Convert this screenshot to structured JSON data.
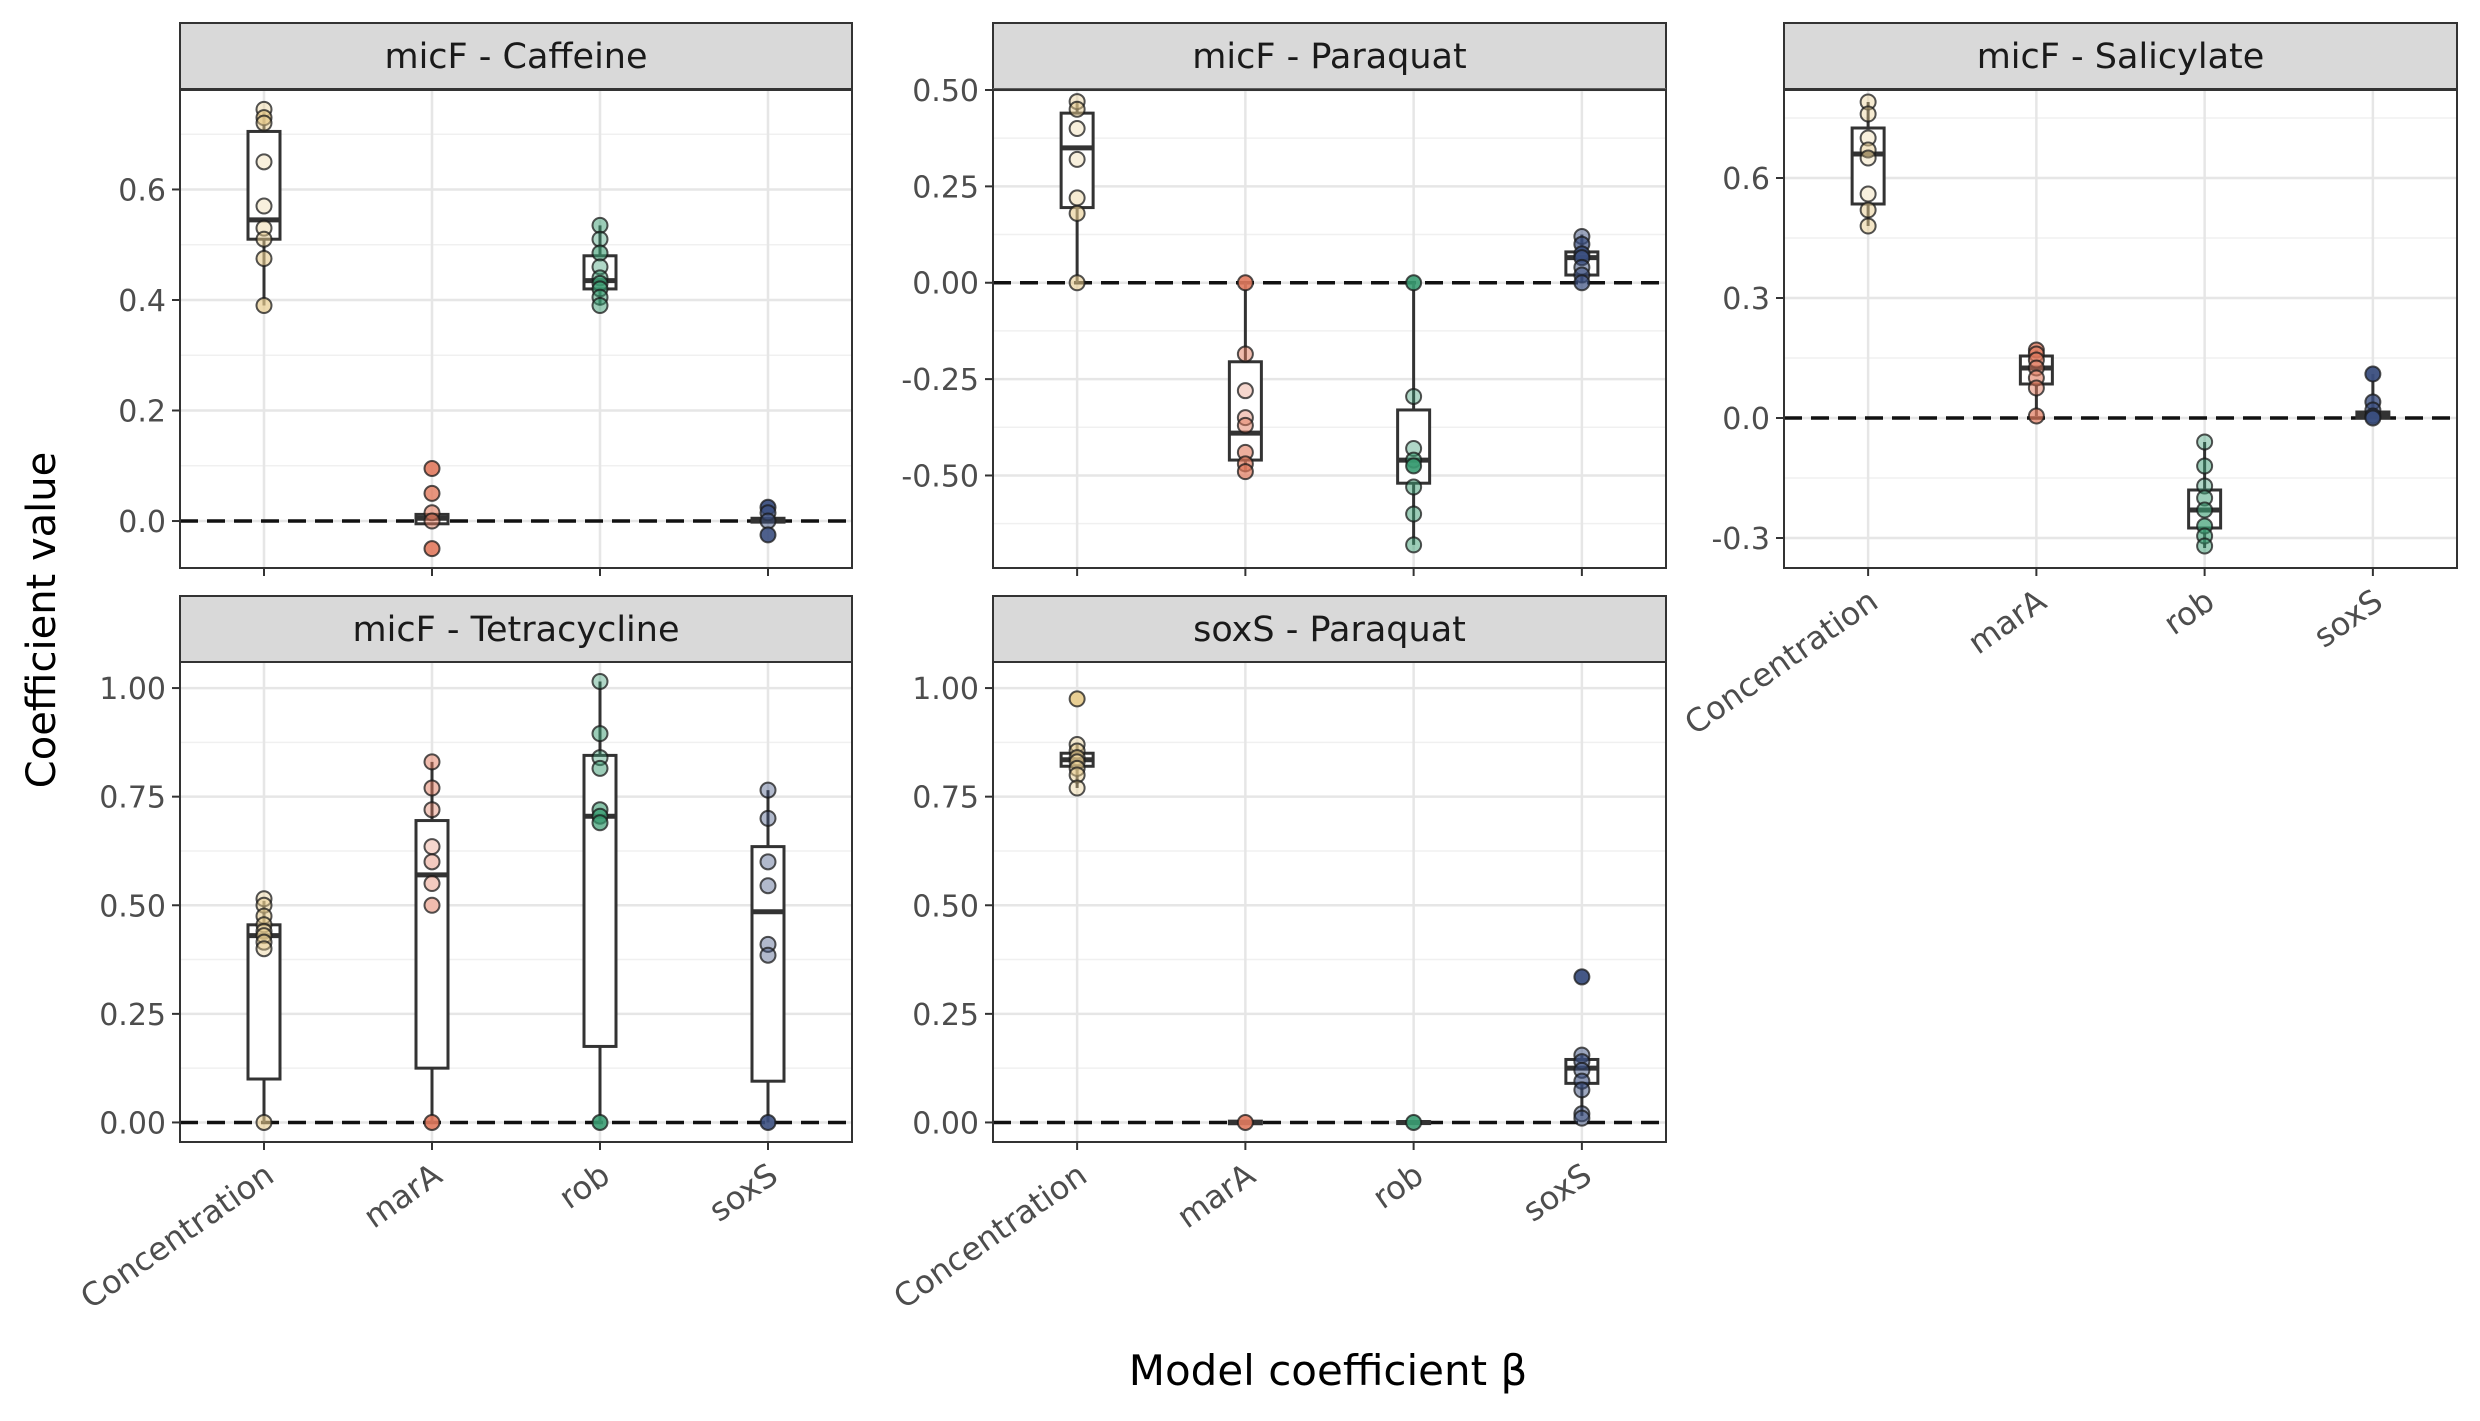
{
  "figure": {
    "ylabel": "Coefficient value",
    "xlabel": "Model coefficient β"
  },
  "chart_data": [
    {
      "type": "box",
      "title": "micF - Caffeine",
      "categories": [
        "Concentration",
        "marA",
        "rob",
        "soxS"
      ],
      "ylim": [
        -0.085,
        0.78
      ],
      "yticks": [
        0.0,
        0.2,
        0.4,
        0.6
      ],
      "ytick_labels": [
        "0.0",
        "0.2",
        "0.4",
        "0.6"
      ],
      "reference_line": 0,
      "colors": {
        "Concentration": "#e8cc8e",
        "marA": "#e17a5e",
        "rob": "#3a9c72",
        "soxS": "#3b4f80"
      },
      "boxes": [
        {
          "category": "Concentration",
          "q1": 0.51,
          "median": 0.545,
          "q3": 0.705,
          "whisker_low": 0.39,
          "whisker_high": 0.74
        },
        {
          "category": "marA",
          "q1": -0.005,
          "median": 0.005,
          "q3": 0.012,
          "whisker_low": -0.005,
          "whisker_high": 0.012
        },
        {
          "category": "rob",
          "q1": 0.42,
          "median": 0.435,
          "q3": 0.48,
          "whisker_low": 0.39,
          "whisker_high": 0.535
        },
        {
          "category": "soxS",
          "q1": -0.002,
          "median": 0.0,
          "q3": 0.005,
          "whisker_low": -0.002,
          "whisker_high": 0.005
        }
      ],
      "points": [
        {
          "category": "Concentration",
          "values": [
            0.745,
            0.73,
            0.72,
            0.65,
            0.57,
            0.53,
            0.51,
            0.475,
            0.39
          ],
          "alphas": [
            0.4,
            0.8,
            0.5,
            0.3,
            0.3,
            0.4,
            0.5,
            0.6,
            0.7
          ]
        },
        {
          "category": "marA",
          "values": [
            0.095,
            0.05,
            0.015,
            0.0,
            -0.05
          ],
          "alphas": [
            0.9,
            0.8,
            0.6,
            0.5,
            0.9
          ]
        },
        {
          "category": "rob",
          "values": [
            0.535,
            0.51,
            0.485,
            0.46,
            0.44,
            0.43,
            0.42,
            0.405,
            0.39
          ],
          "alphas": [
            0.5,
            0.4,
            0.6,
            0.4,
            0.5,
            0.7,
            0.6,
            0.5,
            0.5
          ]
        },
        {
          "category": "soxS",
          "values": [
            0.025,
            0.015,
            0.0,
            -0.025
          ],
          "alphas": [
            0.95,
            0.7,
            0.5,
            0.9
          ]
        }
      ]
    },
    {
      "type": "box",
      "title": "micF - Paraquat",
      "categories": [
        "Concentration",
        "marA",
        "rob",
        "soxS"
      ],
      "ylim": [
        -0.74,
        0.5
      ],
      "yticks": [
        -0.5,
        -0.25,
        0.0,
        0.25,
        0.5
      ],
      "ytick_labels": [
        "-0.50",
        "-0.25",
        "0.00",
        "0.25",
        "0.50"
      ],
      "reference_line": 0,
      "colors": {
        "Concentration": "#e8cc8e",
        "marA": "#e17a5e",
        "rob": "#3a9c72",
        "soxS": "#3b4f80"
      },
      "boxes": [
        {
          "category": "Concentration",
          "q1": 0.195,
          "median": 0.35,
          "q3": 0.44,
          "whisker_low": 0.0,
          "whisker_high": 0.47
        },
        {
          "category": "marA",
          "q1": -0.46,
          "median": -0.39,
          "q3": -0.205,
          "whisker_low": -0.49,
          "whisker_high": 0.0
        },
        {
          "category": "rob",
          "q1": -0.52,
          "median": -0.46,
          "q3": -0.33,
          "whisker_low": -0.68,
          "whisker_high": 0.0
        },
        {
          "category": "soxS",
          "q1": 0.02,
          "median": 0.065,
          "q3": 0.08,
          "whisker_low": 0.0,
          "whisker_high": 0.125
        }
      ],
      "points": [
        {
          "category": "Concentration",
          "values": [
            0.47,
            0.45,
            0.4,
            0.32,
            0.22,
            0.18,
            0.0
          ],
          "alphas": [
            0.4,
            0.5,
            0.3,
            0.3,
            0.4,
            0.6,
            0.6
          ]
        },
        {
          "category": "marA",
          "values": [
            0.0,
            -0.185,
            -0.28,
            -0.35,
            -0.37,
            -0.44,
            -0.47,
            -0.49
          ],
          "alphas": [
            0.9,
            0.5,
            0.3,
            0.4,
            0.5,
            0.6,
            0.7,
            0.7
          ]
        },
        {
          "category": "rob",
          "values": [
            0.0,
            -0.295,
            -0.43,
            -0.46,
            -0.475,
            -0.53,
            -0.6,
            -0.68
          ],
          "alphas": [
            0.9,
            0.4,
            0.4,
            0.6,
            0.9,
            0.5,
            0.5,
            0.5
          ]
        },
        {
          "category": "soxS",
          "values": [
            0.12,
            0.1,
            0.075,
            0.065,
            0.04,
            0.02,
            0.0
          ],
          "alphas": [
            0.5,
            0.7,
            0.9,
            0.8,
            0.5,
            0.6,
            0.7
          ]
        }
      ]
    },
    {
      "type": "box",
      "title": "micF - Salicylate",
      "categories": [
        "Concentration",
        "marA",
        "rob",
        "soxS"
      ],
      "ylim": [
        -0.375,
        0.82
      ],
      "yticks": [
        -0.3,
        0.0,
        0.3,
        0.6
      ],
      "ytick_labels": [
        "-0.3",
        "0.0",
        "0.3",
        "0.6"
      ],
      "reference_line": 0,
      "colors": {
        "Concentration": "#e8cc8e",
        "marA": "#e17a5e",
        "rob": "#3a9c72",
        "soxS": "#3b4f80"
      },
      "boxes": [
        {
          "category": "Concentration",
          "q1": 0.535,
          "median": 0.66,
          "q3": 0.725,
          "whisker_low": 0.48,
          "whisker_high": 0.79
        },
        {
          "category": "marA",
          "q1": 0.085,
          "median": 0.125,
          "q3": 0.155,
          "whisker_low": 0.005,
          "whisker_high": 0.17
        },
        {
          "category": "rob",
          "q1": -0.275,
          "median": -0.23,
          "q3": -0.18,
          "whisker_low": -0.325,
          "whisker_high": -0.06
        },
        {
          "category": "soxS",
          "q1": 0.0,
          "median": 0.005,
          "q3": 0.015,
          "whisker_low": 0.0,
          "whisker_high": 0.11
        }
      ],
      "points": [
        {
          "category": "Concentration",
          "values": [
            0.79,
            0.76,
            0.7,
            0.67,
            0.65,
            0.56,
            0.52,
            0.48
          ],
          "alphas": [
            0.4,
            0.4,
            0.3,
            0.5,
            0.3,
            0.3,
            0.5,
            0.5
          ]
        },
        {
          "category": "marA",
          "values": [
            0.17,
            0.16,
            0.145,
            0.125,
            0.1,
            0.075,
            0.005
          ],
          "alphas": [
            0.8,
            0.6,
            0.7,
            0.5,
            0.6,
            0.5,
            0.7
          ]
        },
        {
          "category": "rob",
          "values": [
            -0.06,
            -0.12,
            -0.17,
            -0.2,
            -0.23,
            -0.27,
            -0.295,
            -0.32
          ],
          "alphas": [
            0.4,
            0.5,
            0.4,
            0.5,
            0.6,
            0.7,
            0.6,
            0.5
          ]
        },
        {
          "category": "soxS",
          "values": [
            0.11,
            0.04,
            0.02,
            0.005,
            0.0
          ],
          "alphas": [
            0.95,
            0.8,
            0.6,
            0.9,
            0.8
          ]
        }
      ]
    },
    {
      "type": "box",
      "title": "micF - Tetracycline",
      "categories": [
        "Concentration",
        "marA",
        "rob",
        "soxS"
      ],
      "ylim": [
        -0.045,
        1.06
      ],
      "yticks": [
        0.0,
        0.25,
        0.5,
        0.75,
        1.0
      ],
      "ytick_labels": [
        "0.00",
        "0.25",
        "0.50",
        "0.75",
        "1.00"
      ],
      "reference_line": 0,
      "colors": {
        "Concentration": "#e8cc8e",
        "marA": "#e17a5e",
        "rob": "#3a9c72",
        "soxS": "#3b4f80"
      },
      "boxes": [
        {
          "category": "Concentration",
          "q1": 0.1,
          "median": 0.43,
          "q3": 0.455,
          "whisker_low": 0.0,
          "whisker_high": 0.51
        },
        {
          "category": "marA",
          "q1": 0.125,
          "median": 0.57,
          "q3": 0.695,
          "whisker_low": 0.0,
          "whisker_high": 0.83
        },
        {
          "category": "rob",
          "q1": 0.175,
          "median": 0.705,
          "q3": 0.845,
          "whisker_low": 0.0,
          "whisker_high": 1.015
        },
        {
          "category": "soxS",
          "q1": 0.095,
          "median": 0.485,
          "q3": 0.635,
          "whisker_low": 0.0,
          "whisker_high": 0.765
        }
      ],
      "points": [
        {
          "category": "Concentration",
          "values": [
            0.515,
            0.5,
            0.475,
            0.455,
            0.44,
            0.43,
            0.415,
            0.4,
            0.0
          ],
          "alphas": [
            0.4,
            0.5,
            0.6,
            0.5,
            0.4,
            0.6,
            0.5,
            0.4,
            0.6
          ]
        },
        {
          "category": "marA",
          "values": [
            0.83,
            0.77,
            0.72,
            0.635,
            0.6,
            0.55,
            0.5,
            0.0
          ],
          "alphas": [
            0.5,
            0.5,
            0.4,
            0.3,
            0.4,
            0.4,
            0.5,
            0.9
          ]
        },
        {
          "category": "rob",
          "values": [
            1.015,
            0.895,
            0.84,
            0.815,
            0.72,
            0.705,
            0.69,
            0.0
          ],
          "alphas": [
            0.4,
            0.5,
            0.4,
            0.5,
            0.6,
            0.8,
            0.7,
            0.9
          ]
        },
        {
          "category": "soxS",
          "values": [
            0.765,
            0.7,
            0.6,
            0.545,
            0.41,
            0.385,
            0.0
          ],
          "alphas": [
            0.4,
            0.4,
            0.4,
            0.4,
            0.4,
            0.4,
            0.9
          ]
        }
      ]
    },
    {
      "type": "box",
      "title": "soxS - Paraquat",
      "categories": [
        "Concentration",
        "marA",
        "rob",
        "soxS"
      ],
      "ylim": [
        -0.045,
        1.06
      ],
      "yticks": [
        0.0,
        0.25,
        0.5,
        0.75,
        1.0
      ],
      "ytick_labels": [
        "0.00",
        "0.25",
        "0.50",
        "0.75",
        "1.00"
      ],
      "reference_line": 0,
      "colors": {
        "Concentration": "#e8cc8e",
        "marA": "#e17a5e",
        "rob": "#3a9c72",
        "soxS": "#3b4f80"
      },
      "boxes": [
        {
          "category": "Concentration",
          "q1": 0.82,
          "median": 0.835,
          "q3": 0.85,
          "whisker_low": 0.77,
          "whisker_high": 0.87
        },
        {
          "category": "marA",
          "q1": -0.003,
          "median": 0.0,
          "q3": 0.003,
          "whisker_low": -0.003,
          "whisker_high": 0.003
        },
        {
          "category": "rob",
          "q1": -0.002,
          "median": 0.0,
          "q3": 0.002,
          "whisker_low": -0.002,
          "whisker_high": 0.002
        },
        {
          "category": "soxS",
          "q1": 0.09,
          "median": 0.125,
          "q3": 0.145,
          "whisker_low": 0.015,
          "whisker_high": 0.155
        }
      ],
      "points": [
        {
          "category": "Concentration",
          "values": [
            0.975,
            0.87,
            0.855,
            0.84,
            0.83,
            0.815,
            0.8,
            0.77
          ],
          "alphas": [
            0.95,
            0.4,
            0.5,
            0.5,
            0.5,
            0.5,
            0.5,
            0.4
          ]
        },
        {
          "category": "marA",
          "values": [
            0.0
          ],
          "alphas": [
            0.9
          ]
        },
        {
          "category": "rob",
          "values": [
            0.0
          ],
          "alphas": [
            0.9
          ]
        },
        {
          "category": "soxS",
          "values": [
            0.335,
            0.155,
            0.14,
            0.12,
            0.095,
            0.075,
            0.02,
            0.01
          ],
          "alphas": [
            0.95,
            0.5,
            0.6,
            0.5,
            0.6,
            0.5,
            0.5,
            0.5
          ]
        }
      ]
    }
  ]
}
